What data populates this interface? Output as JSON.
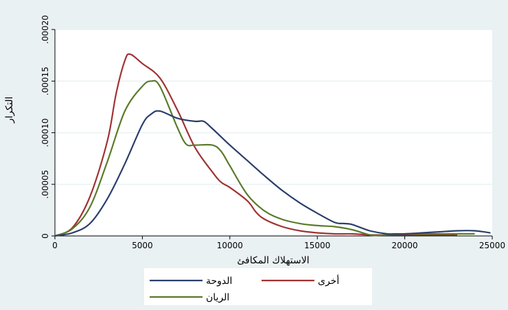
{
  "chart_data": {
    "type": "line",
    "xlabel": "الاستهلاك المكافئ",
    "ylabel": "التكرار",
    "xlim": [
      0,
      25000
    ],
    "ylim": [
      0,
      0.0002
    ],
    "x_ticks": [
      0,
      5000,
      10000,
      15000,
      20000,
      25000
    ],
    "x_tick_labels": [
      "0",
      "5000",
      "10000",
      "15000",
      "20000",
      "25000"
    ],
    "y_ticks": [
      0,
      5e-05,
      0.0001,
      0.00015,
      0.0002
    ],
    "y_tick_labels": [
      "0",
      ".00005",
      ".00010",
      ".00015",
      ".00020"
    ],
    "grid": "horizontal",
    "legend_position": "bottom",
    "series": [
      {
        "name": "الدوحة",
        "color": "#2a3e6a",
        "x": [
          0,
          1000,
          2000,
          3000,
          4000,
          5000,
          5500,
          6000,
          7000,
          8000,
          8500,
          9000,
          10000,
          11000,
          12000,
          13000,
          14000,
          15000,
          16000,
          16500,
          17000,
          18000,
          19000,
          19500,
          20000,
          21000,
          22000,
          23000,
          24000,
          24900
        ],
        "y": [
          0,
          3e-06,
          1.2e-05,
          3.6e-05,
          7e-05,
          0.000108,
          0.000118,
          0.000121,
          0.000114,
          0.000111,
          0.000111,
          0.000104,
          8.8e-05,
          7.3e-05,
          5.8e-05,
          4.4e-05,
          3.2e-05,
          2.2e-05,
          1.3e-05,
          1.2e-05,
          1.1e-05,
          5e-06,
          2e-06,
          2e-06,
          2e-06,
          3e-06,
          4e-06,
          5e-06,
          5e-06,
          3e-06
        ]
      },
      {
        "name": "أخرى",
        "color": "#a03232",
        "x": [
          0,
          1000,
          2000,
          3000,
          3500,
          4000,
          4300,
          5000,
          6000,
          7000,
          8000,
          9000,
          9500,
          10000,
          11000,
          11500,
          12000,
          13000,
          14000,
          15000,
          16000,
          17000,
          18000,
          19000,
          20000,
          21000,
          22000,
          23000
        ],
        "y": [
          0,
          8e-06,
          3.8e-05,
          9.2e-05,
          0.000138,
          0.00017,
          0.000176,
          0.000167,
          0.000153,
          0.000122,
          8.6e-05,
          6.2e-05,
          5.2e-05,
          4.7e-05,
          3.4e-05,
          2.3e-05,
          1.6e-05,
          9e-06,
          5e-06,
          3e-06,
          2e-06,
          2e-06,
          1e-06,
          1e-06,
          1e-06,
          1e-06,
          1e-06,
          1e-06
        ]
      },
      {
        "name": "الريان",
        "color": "#5a7a2a",
        "x": [
          0,
          1000,
          2000,
          3000,
          4000,
          5000,
          5500,
          6000,
          7000,
          7500,
          8000,
          9000,
          9500,
          10000,
          11000,
          12000,
          13000,
          14000,
          15000,
          16000,
          17000,
          18000,
          18500,
          19000,
          20000,
          21000,
          22000,
          23000,
          24000
        ],
        "y": [
          0,
          7e-06,
          2.8e-05,
          7.2e-05,
          0.000121,
          0.000145,
          0.00015,
          0.000145,
          0.000105,
          8.9e-05,
          8.8e-05,
          8.8e-05,
          8.2e-05,
          6.8e-05,
          4e-05,
          2.4e-05,
          1.6e-05,
          1.2e-05,
          1e-05,
          9e-06,
          6e-06,
          1e-06,
          5e-07,
          1e-06,
          2e-06,
          2e-06,
          2e-06,
          2e-06,
          2e-06
        ]
      }
    ]
  }
}
